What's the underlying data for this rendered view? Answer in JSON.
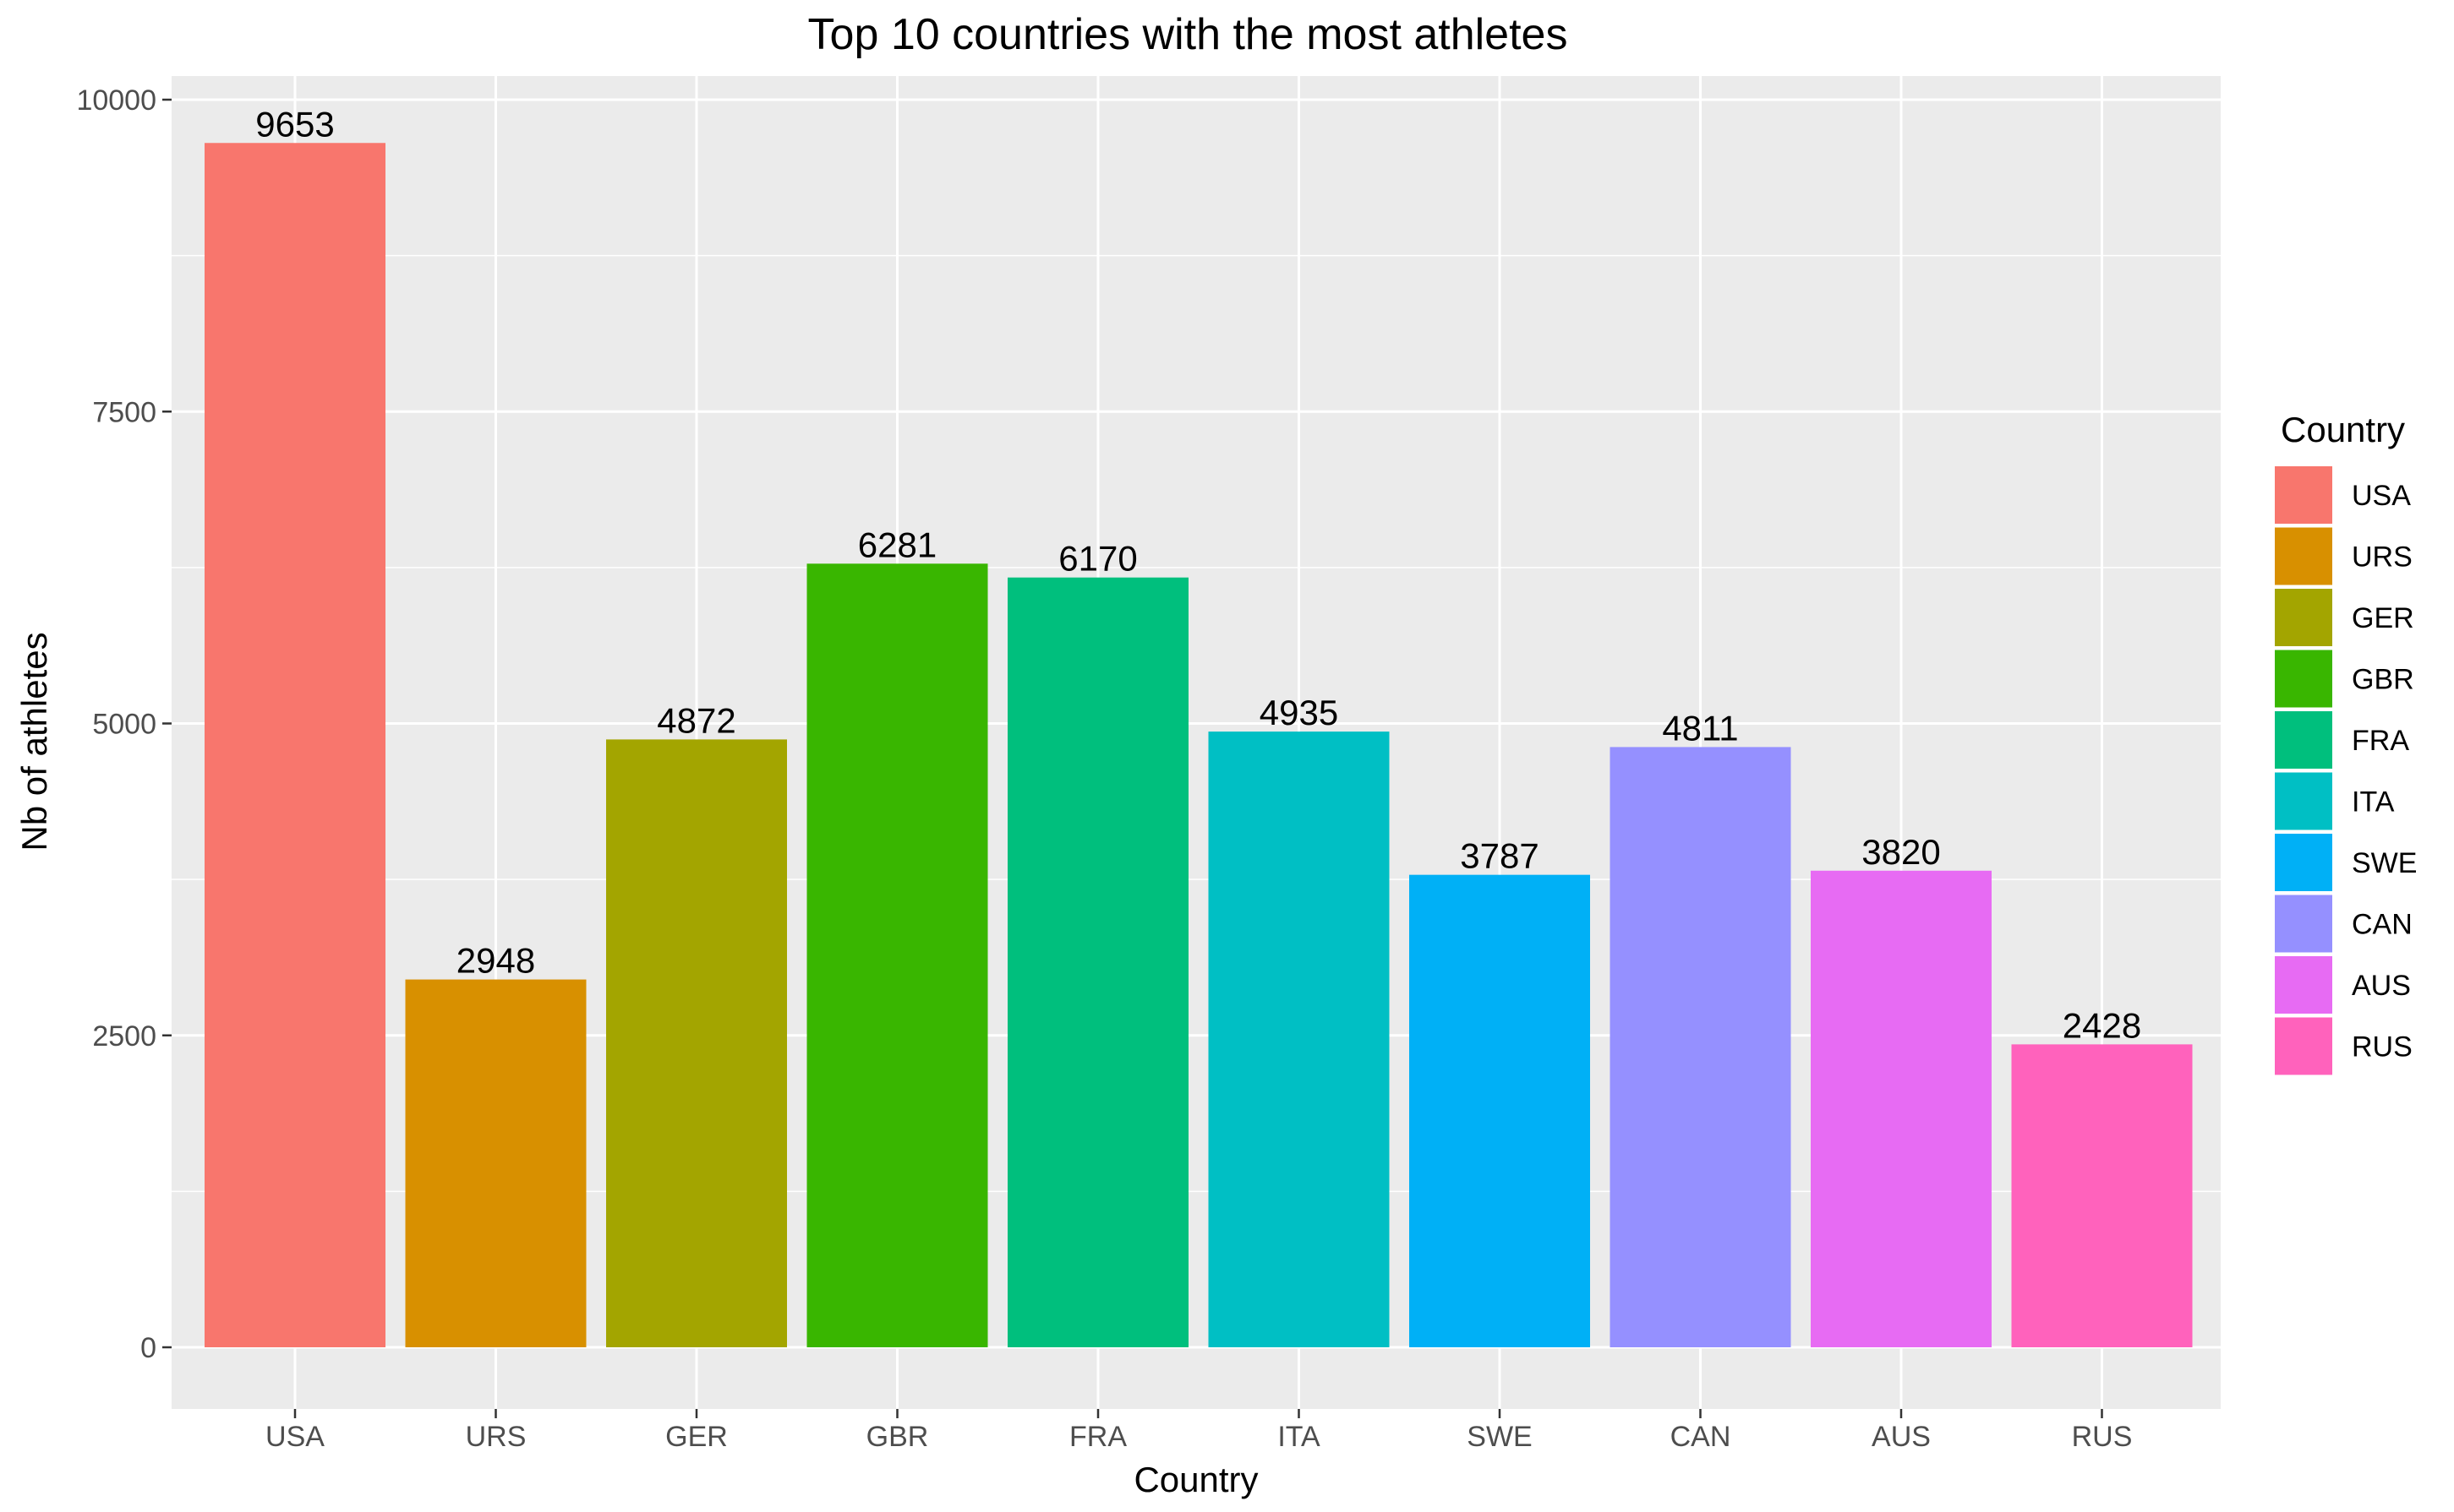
{
  "chart_data": {
    "type": "bar",
    "title": "Top 10 countries with the most athletes",
    "xlabel": "Country",
    "ylabel": "Nb of athletes",
    "categories": [
      "USA",
      "URS",
      "GER",
      "GBR",
      "FRA",
      "ITA",
      "SWE",
      "CAN",
      "AUS",
      "RUS"
    ],
    "values": [
      9653,
      2948,
      4872,
      6281,
      6170,
      4935,
      3787,
      4811,
      3820,
      2428
    ],
    "colors": [
      "#F8766D",
      "#D89000",
      "#A3A500",
      "#39B600",
      "#00BF7D",
      "#00BFC4",
      "#00B0F6",
      "#9590FF",
      "#E76BF3",
      "#FF62BC"
    ],
    "ylim": [
      0,
      10000
    ],
    "yticks": [
      0,
      2500,
      5000,
      7500,
      10000
    ],
    "ytick_labels": [
      "0",
      "2500",
      "5000",
      "7500",
      "10000"
    ],
    "grid": true,
    "legend": {
      "title": "Country",
      "position": "right",
      "entries": [
        "USA",
        "URS",
        "GER",
        "GBR",
        "FRA",
        "ITA",
        "SWE",
        "CAN",
        "AUS",
        "RUS"
      ]
    }
  }
}
